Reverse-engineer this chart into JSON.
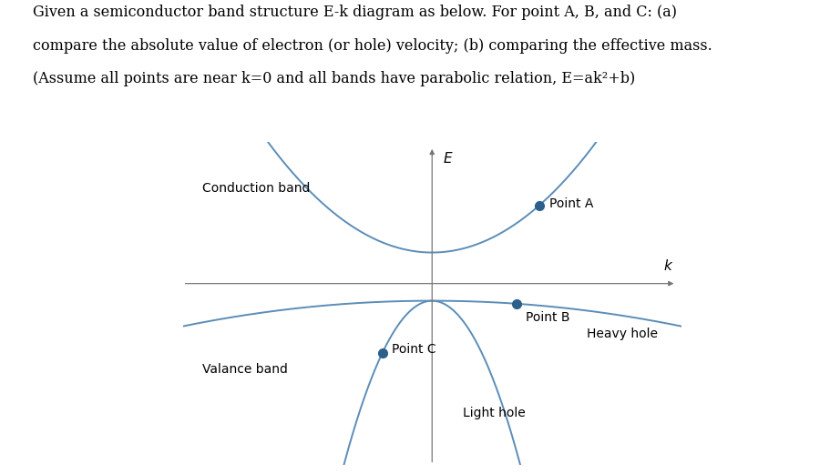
{
  "background_color": "#ffffff",
  "curve_color": "#5b8db8",
  "axis_color": "#777777",
  "text_color": "#000000",
  "point_color": "#2c5f8a",
  "conduction_a": 3.5,
  "conduction_b": 0.18,
  "heavy_hole_a": -0.35,
  "heavy_hole_b": -0.1,
  "light_hole_a": -18.0,
  "light_hole_b": -0.1,
  "point_A_k": 0.28,
  "point_B_k": 0.22,
  "point_C_k": -0.13,
  "axis_xlim": [
    -0.65,
    0.65
  ],
  "axis_ylim": [
    -1.05,
    0.82
  ],
  "title_line1": "Given a semiconductor band structure E-k diagram as below. For point A, B, and C: (a)",
  "title_line2": "compare the absolute value of electron (or hole) velocity; (b) comparing the effective mass.",
  "title_line3": "(Assume all points are near k=0 and all bands have parabolic relation, E=ak²+b)"
}
